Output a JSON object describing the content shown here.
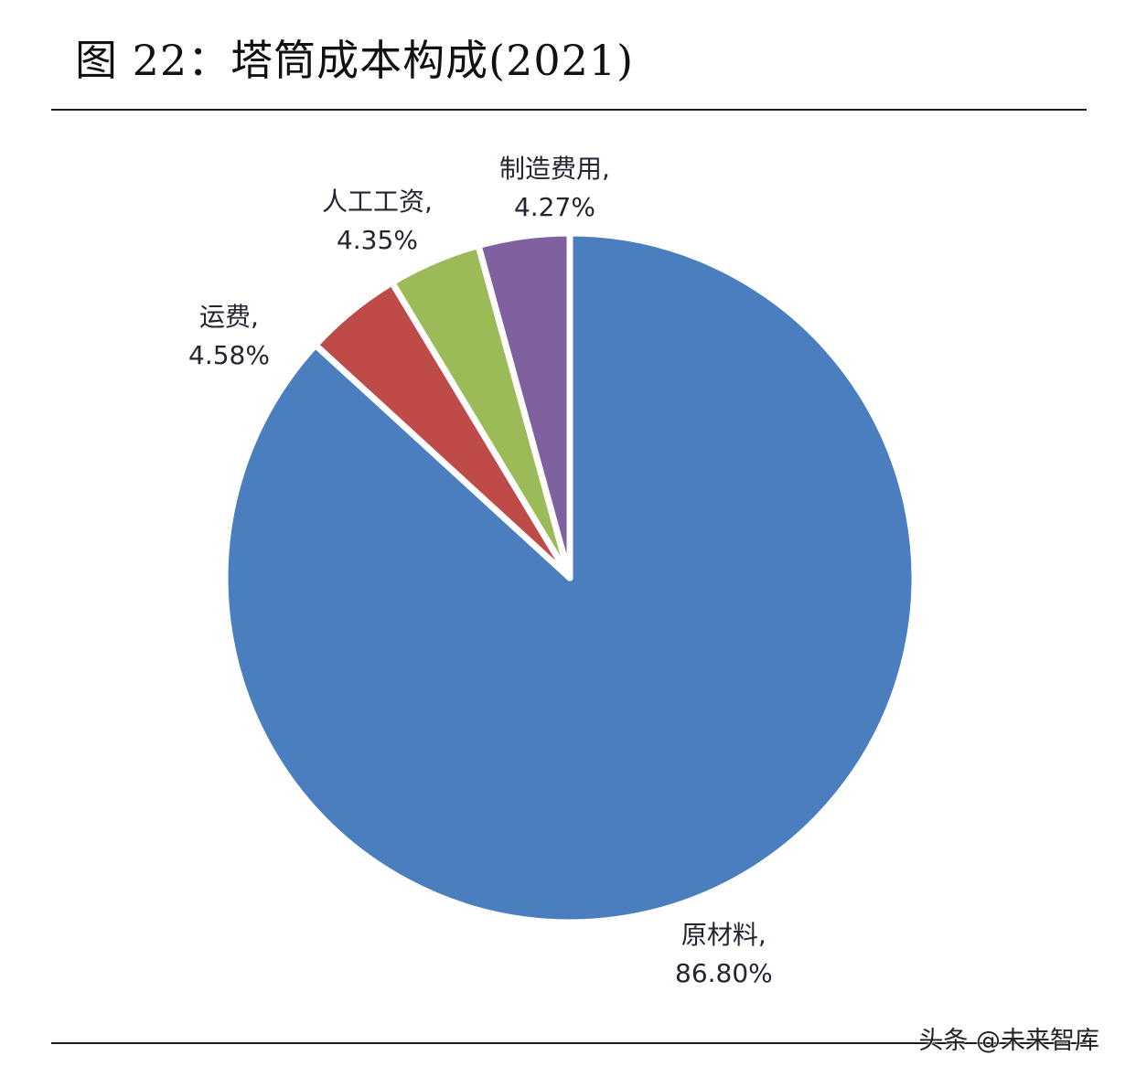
{
  "header": {
    "title": "图 22：塔筒成本构成(2021)"
  },
  "watermark": "头条 @未来智库",
  "chart_data": {
    "type": "pie",
    "title": "图 22：塔筒成本构成(2021)",
    "start_angle_deg": 0,
    "direction": "clockwise",
    "categories": [
      "原材料",
      "运费",
      "人工工资",
      "制造费用"
    ],
    "values": [
      86.8,
      4.58,
      4.35,
      4.27
    ],
    "unit": "%",
    "colors": [
      "#4A7EBF",
      "#BE4B48",
      "#9BBB59",
      "#7F619F"
    ],
    "labels": [
      {
        "name": "原材料,",
        "value": "86.80%"
      },
      {
        "name": "运费,",
        "value": "4.58%"
      },
      {
        "name": "人工工资,",
        "value": "4.35%"
      },
      {
        "name": "制造费用,",
        "value": "4.27%"
      }
    ],
    "legend": "none",
    "slice_separator_color": "#ffffff"
  }
}
